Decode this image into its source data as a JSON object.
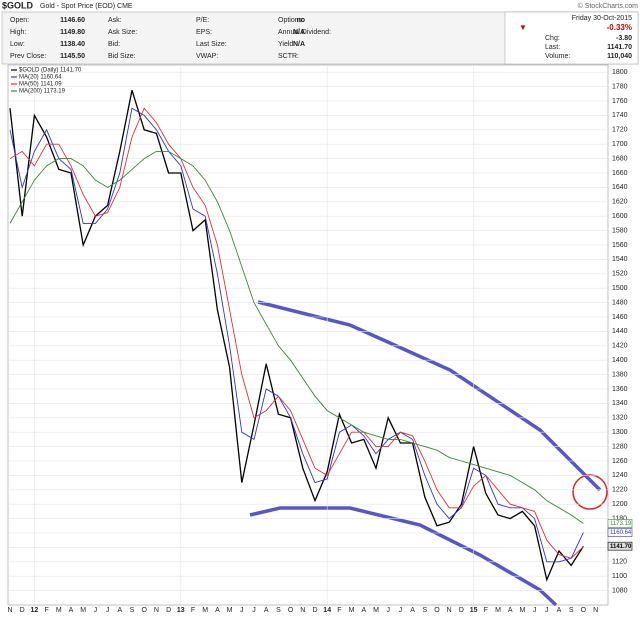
{
  "header": {
    "symbol": "$GOLD",
    "description": "Gold - Spot Price (EOD) CME",
    "watermark": "© StockCharts.com"
  },
  "quote": {
    "columns": [
      [
        [
          "Open:",
          "1146.60"
        ],
        [
          "High:",
          "1149.80"
        ],
        [
          "Low:",
          "1138.40"
        ],
        [
          "Prev Close:",
          "1145.50"
        ]
      ],
      [
        [
          "Ask:"
        ],
        [
          "Ask Size:"
        ],
        [
          "Bid:"
        ],
        [
          "Bid Size:"
        ]
      ],
      [
        [
          "P/E:"
        ],
        [
          "EPS:"
        ],
        [
          "Last Size:"
        ],
        [
          "VWAP:"
        ]
      ],
      [
        [
          "Options:",
          "no"
        ],
        [
          "Annual Dividend:",
          "N/A"
        ],
        [
          "Yield:",
          "N/A"
        ],
        [
          "SCTR:"
        ]
      ]
    ],
    "date": "Friday  30-Oct-2015",
    "change_pct": "-0.33%",
    "summary": [
      [
        "Chg:",
        "-3.80"
      ],
      [
        "Last:",
        "1141.70"
      ],
      [
        "Volume:",
        "110,040"
      ]
    ]
  },
  "chart_data": {
    "type": "line",
    "categories": [
      "N",
      "D",
      "12",
      "F",
      "M",
      "A",
      "M",
      "J",
      "J",
      "A",
      "S",
      "O",
      "N",
      "D",
      "13",
      "F",
      "M",
      "A",
      "M",
      "J",
      "J",
      "A",
      "S",
      "O",
      "N",
      "D",
      "14",
      "F",
      "M",
      "A",
      "M",
      "J",
      "J",
      "A",
      "S",
      "O",
      "N",
      "D",
      "15",
      "F",
      "M",
      "A",
      "M",
      "J",
      "J",
      "A",
      "S",
      "O",
      "N"
    ],
    "ylim": [
      1060,
      1810
    ],
    "yticks": [
      1080,
      1100,
      1120,
      1140,
      1160,
      1180,
      1200,
      1220,
      1240,
      1260,
      1280,
      1300,
      1320,
      1340,
      1360,
      1380,
      1400,
      1420,
      1440,
      1460,
      1480,
      1500,
      1520,
      1540,
      1560,
      1580,
      1600,
      1620,
      1640,
      1660,
      1680,
      1700,
      1720,
      1740,
      1760,
      1780,
      1800
    ],
    "grid": true,
    "series": [
      {
        "name": "$GOLD (Daily) 1141.70",
        "color": "#000000",
        "last_label": "1141.70",
        "values": [
          1750,
          1600,
          1740,
          1710,
          1665,
          1660,
          1560,
          1600,
          1615,
          1690,
          1775,
          1720,
          1715,
          1660,
          1660,
          1580,
          1595,
          1470,
          1390,
          1230,
          1310,
          1395,
          1325,
          1320,
          1250,
          1205,
          1245,
          1325,
          1285,
          1290,
          1250,
          1320,
          1285,
          1285,
          1210,
          1170,
          1175,
          1200,
          1280,
          1215,
          1185,
          1180,
          1190,
          1170,
          1095,
          1135,
          1115,
          1141.7,
          null
        ]
      },
      {
        "name": "MA(20) 1160.64",
        "color": "#3333cc",
        "last_label": "1160.64",
        "values": [
          1720,
          1640,
          1690,
          1720,
          1680,
          1665,
          1590,
          1590,
          1610,
          1660,
          1750,
          1740,
          1720,
          1690,
          1670,
          1610,
          1600,
          1520,
          1420,
          1300,
          1290,
          1360,
          1350,
          1320,
          1270,
          1230,
          1235,
          1300,
          1310,
          1295,
          1270,
          1290,
          1300,
          1290,
          1240,
          1200,
          1180,
          1195,
          1250,
          1240,
          1200,
          1195,
          1195,
          1180,
          1120,
          1120,
          1125,
          1160.64,
          null
        ]
      },
      {
        "name": "MA(50) 1141.09",
        "color": "#dd3333",
        "values": [
          1680,
          1690,
          1670,
          1700,
          1700,
          1670,
          1630,
          1600,
          1605,
          1640,
          1710,
          1750,
          1730,
          1700,
          1680,
          1640,
          1615,
          1560,
          1470,
          1380,
          1320,
          1330,
          1350,
          1330,
          1290,
          1250,
          1240,
          1270,
          1300,
          1300,
          1280,
          1280,
          1300,
          1295,
          1260,
          1220,
          1195,
          1195,
          1225,
          1240,
          1220,
          1200,
          1195,
          1190,
          1150,
          1130,
          1125,
          1141.09,
          null
        ]
      },
      {
        "name": "MA(200) 1173.19",
        "color": "#338833",
        "last_label": "1173.19",
        "values": [
          1590,
          1620,
          1650,
          1670,
          1680,
          1680,
          1670,
          1650,
          1640,
          1650,
          1665,
          1680,
          1690,
          1690,
          1680,
          1670,
          1650,
          1620,
          1580,
          1530,
          1480,
          1450,
          1420,
          1400,
          1375,
          1350,
          1330,
          1320,
          1310,
          1300,
          1295,
          1290,
          1290,
          1285,
          1280,
          1275,
          1265,
          1260,
          1255,
          1250,
          1245,
          1240,
          1230,
          1220,
          1205,
          1195,
          1185,
          1173.19,
          null
        ]
      }
    ]
  }
}
